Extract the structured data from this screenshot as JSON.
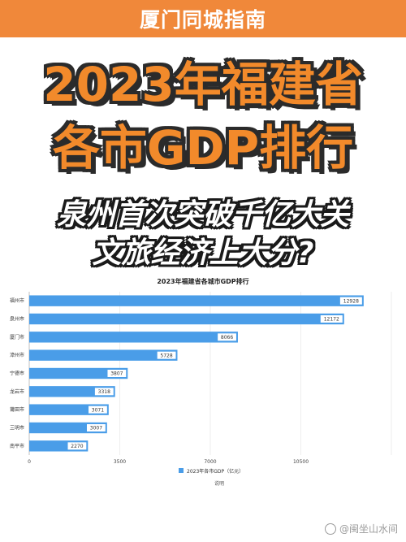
{
  "banner": {
    "text": "厦门同城指南"
  },
  "headline": {
    "line1": "2023年福建省",
    "line2": "各市GDP排行"
  },
  "subtitle": {
    "line1": "泉州首次突破千亿大关",
    "line2": "文旅经济上大分?"
  },
  "watermark": {
    "text": "@闽坐山水间"
  },
  "colors": {
    "banner": "#f0883a",
    "bar": "#4a9de8",
    "headline": "#f28a2b"
  },
  "chart_data": {
    "type": "bar",
    "orientation": "horizontal",
    "title": "2023年福建省各城市GDP排行",
    "categories": [
      "福州市",
      "泉州市",
      "厦门市",
      "漳州市",
      "宁德市",
      "龙岩市",
      "莆田市",
      "三明市",
      "南平市"
    ],
    "series": [
      {
        "name": "2023年各市GDP（亿元）",
        "values": [
          12928,
          12172,
          8066,
          5728,
          3807,
          3318,
          3071,
          3007,
          2270
        ]
      }
    ],
    "xlim": [
      0,
      14000
    ],
    "xticks": [
      0,
      3500,
      7000,
      10500
    ],
    "grid": true,
    "legend": "bottom",
    "footnote": "说明"
  }
}
